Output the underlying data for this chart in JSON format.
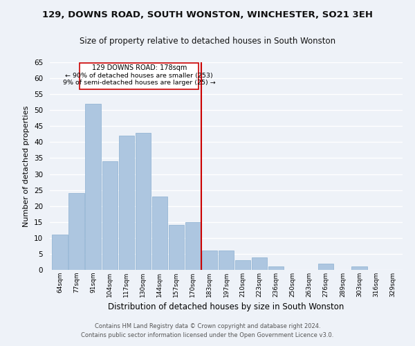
{
  "title": "129, DOWNS ROAD, SOUTH WONSTON, WINCHESTER, SO21 3EH",
  "subtitle": "Size of property relative to detached houses in South Wonston",
  "xlabel": "Distribution of detached houses by size in South Wonston",
  "ylabel": "Number of detached properties",
  "bin_labels": [
    "64sqm",
    "77sqm",
    "91sqm",
    "104sqm",
    "117sqm",
    "130sqm",
    "144sqm",
    "157sqm",
    "170sqm",
    "183sqm",
    "197sqm",
    "210sqm",
    "223sqm",
    "236sqm",
    "250sqm",
    "263sqm",
    "276sqm",
    "289sqm",
    "303sqm",
    "316sqm",
    "329sqm"
  ],
  "bar_values": [
    11,
    24,
    52,
    34,
    42,
    43,
    23,
    14,
    15,
    6,
    6,
    3,
    4,
    1,
    0,
    0,
    2,
    0,
    1,
    0,
    0
  ],
  "bar_color": "#adc6e0",
  "bar_edgecolor": "#8aafd0",
  "reference_line_label": "129 DOWNS ROAD: 178sqm",
  "annotation_line1": "← 90% of detached houses are smaller (253)",
  "annotation_line2": "9% of semi-detached houses are larger (25) →",
  "vline_color": "#cc0000",
  "box_edgecolor": "#cc0000",
  "background_color": "#eef2f8",
  "grid_color": "#ffffff",
  "footer1": "Contains HM Land Registry data © Crown copyright and database right 2024.",
  "footer2": "Contains public sector information licensed under the Open Government Licence v3.0.",
  "ylim": [
    0,
    65
  ],
  "yticks": [
    0,
    5,
    10,
    15,
    20,
    25,
    30,
    35,
    40,
    45,
    50,
    55,
    60,
    65
  ]
}
